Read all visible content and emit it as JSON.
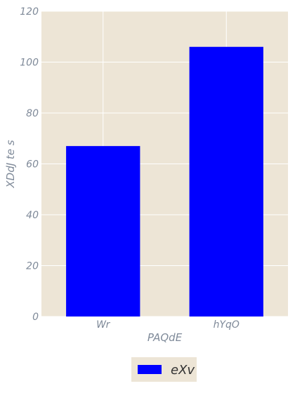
{
  "chart_data": {
    "type": "bar",
    "categories": [
      "Wr",
      "hYqO"
    ],
    "series": [
      {
        "name": "eXv",
        "values": [
          67,
          106
        ],
        "color": "#0000ff"
      }
    ],
    "xlabel": "PAQdE",
    "ylabel": "XDdJ te s",
    "ylim": [
      0,
      120
    ],
    "yticks": [
      0,
      20,
      40,
      60,
      80,
      100,
      120
    ],
    "grid": true,
    "legend_position": "bottom-center",
    "background_color": "#ede5d6",
    "grid_color": "#ffffff"
  }
}
